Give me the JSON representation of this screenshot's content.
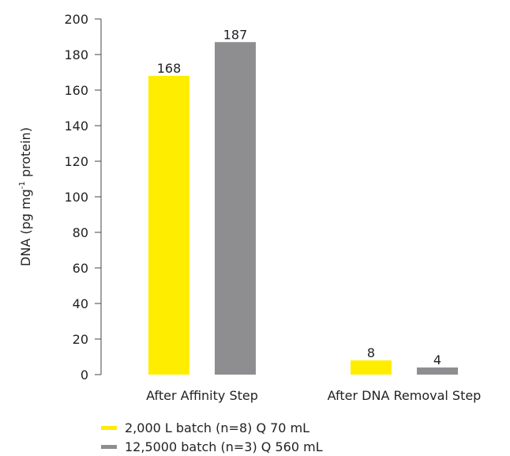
{
  "chart_data": {
    "type": "bar",
    "ylabel": "DNA (pg mg",
    "ylabel_superscript": "-1",
    "ylabel_suffix": " protein)",
    "ylim": [
      0,
      200
    ],
    "yticks": [
      0,
      20,
      40,
      60,
      80,
      100,
      120,
      140,
      160,
      180,
      200
    ],
    "categories": [
      "After Affinity Step",
      "After DNA Removal Step"
    ],
    "series": [
      {
        "name": "2,000 L batch (n=8) Q 70 mL",
        "color": "#FFED00",
        "values": [
          168,
          8
        ]
      },
      {
        "name": "12,5000 batch (n=3) Q 560 mL",
        "color": "#8E8E91",
        "values": [
          187,
          4
        ]
      }
    ],
    "legend_position": "bottom-left",
    "grid": false
  }
}
